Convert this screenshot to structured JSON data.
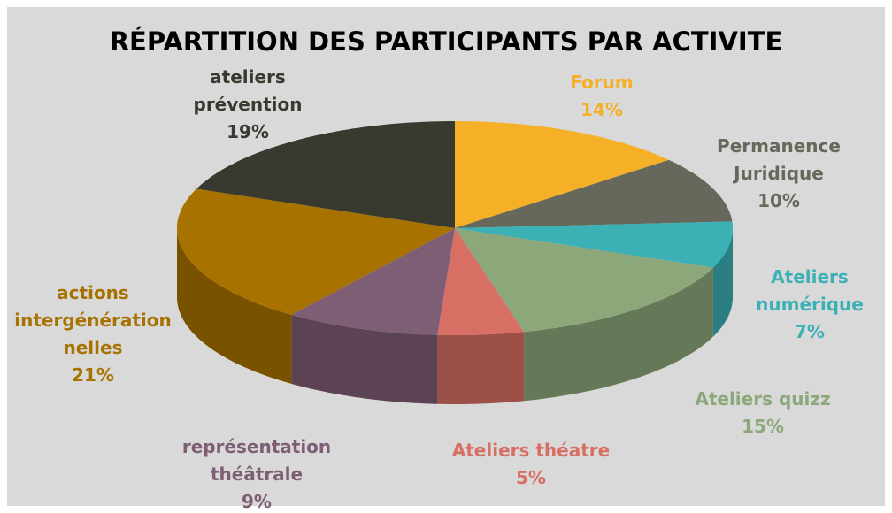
{
  "chart_data": {
    "type": "pie",
    "title": "RÉPARTITION DES PARTICIPANTS PAR ACTIVITE",
    "categories": [
      "Forum",
      "Permanence Juridique",
      "Ateliers numérique",
      "Ateliers quizz",
      "Ateliers théatre",
      "représentation théâtrale",
      "actions intergénérationnelles",
      "ateliers prévention"
    ],
    "values": [
      14,
      10,
      7,
      15,
      5,
      9,
      21,
      19
    ],
    "value_labels": [
      "14%",
      "10%",
      "7%",
      "15%",
      "5%",
      "9%",
      "21%",
      "19%"
    ],
    "colors": [
      "#f5b027",
      "#65685a",
      "#3cb1b5",
      "#8ca87a",
      "#d86f65",
      "#7e5e74",
      "#a87200",
      "#383a30"
    ]
  }
}
